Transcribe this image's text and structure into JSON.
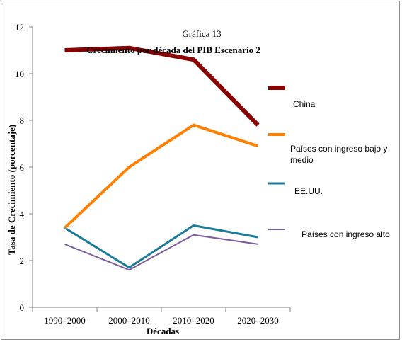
{
  "chart_data": {
    "type": "line",
    "title": "Gráfica 13",
    "subtitle": "Crecimiento por década del PIB Escenario 2",
    "xlabel": "Décadas",
    "ylabel": "Tasa de Crecimiento (porcentaje)",
    "categories": [
      "1990–2000",
      "2000–2010",
      "2010–2020",
      "2020–2030"
    ],
    "ylim": [
      0,
      12
    ],
    "yticks": [
      "0",
      "2",
      "4",
      "6",
      "8",
      "10",
      "12"
    ],
    "grid": false,
    "legend_position": "right",
    "series": [
      {
        "name": "China",
        "values": [
          11.0,
          11.1,
          10.6,
          7.8
        ],
        "color": "#8b0000",
        "width": 6
      },
      {
        "name": "Países con ingreso bajo y medio",
        "values": [
          3.4,
          6.0,
          7.8,
          6.9
        ],
        "color": "#ff8000",
        "width": 4
      },
      {
        "name": "EE.UU.",
        "values": [
          3.4,
          1.7,
          3.5,
          3.0
        ],
        "color": "#1a7c9a",
        "width": 3
      },
      {
        "name": "Países con ingreso alto",
        "values": [
          2.7,
          1.6,
          3.1,
          2.7
        ],
        "color": "#7b5c9e",
        "width": 2
      }
    ]
  }
}
